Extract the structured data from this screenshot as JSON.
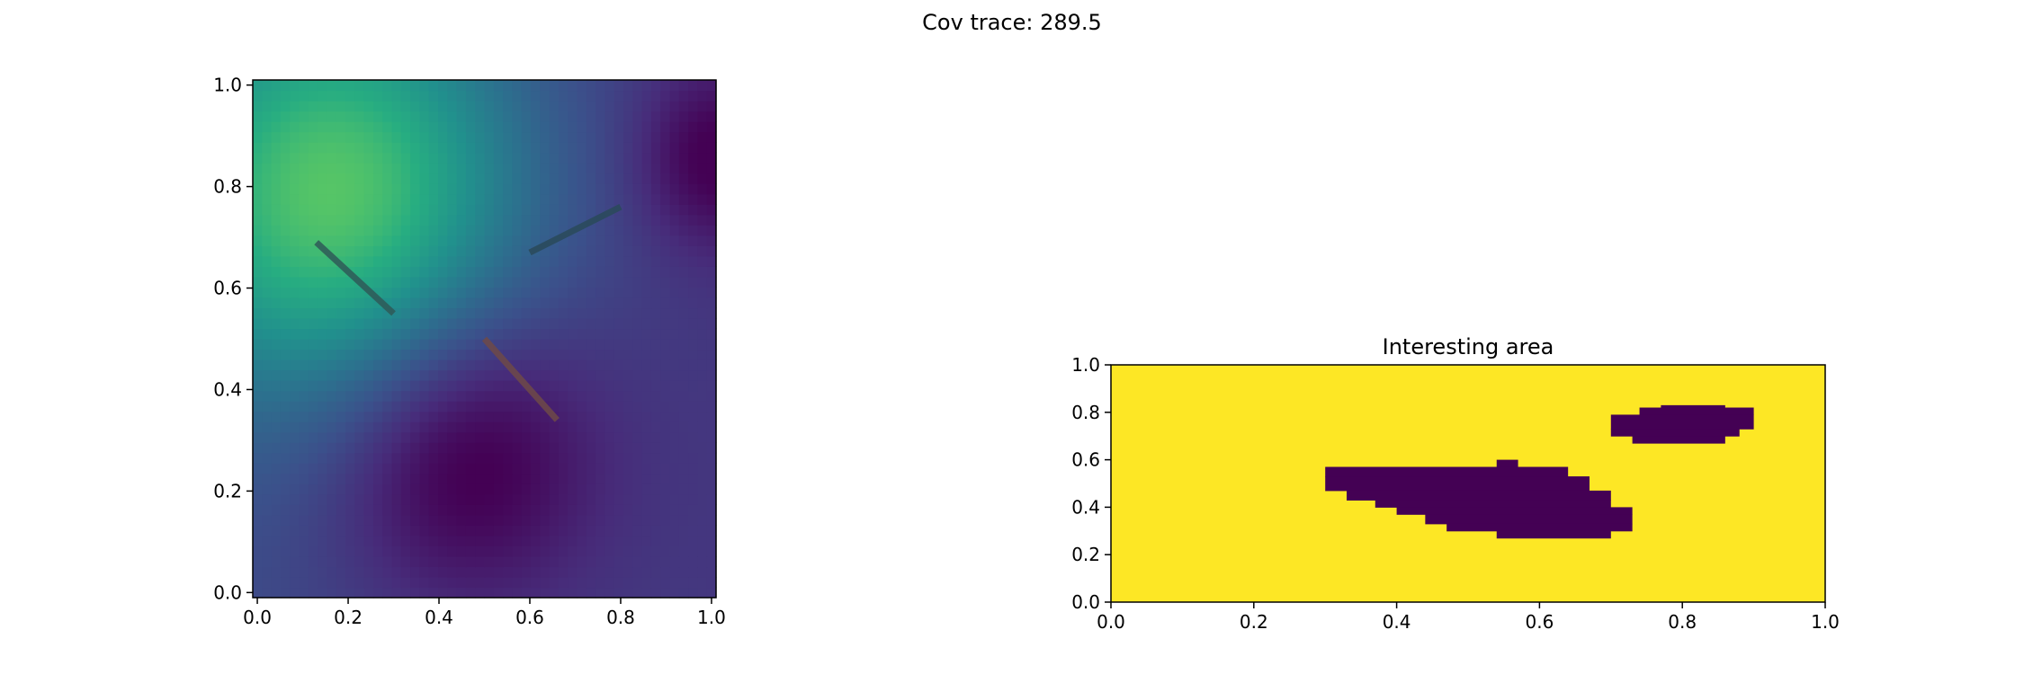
{
  "figure": {
    "suptitle": "Cov trace: 289.5"
  },
  "chart_data": [
    {
      "type": "heatmap",
      "title": "",
      "xlabel": "",
      "ylabel": "",
      "xlim": [
        -0.01,
        1.01
      ],
      "ylim": [
        -0.01,
        1.01
      ],
      "xticks": [
        "0.0",
        "0.2",
        "0.4",
        "0.6",
        "0.8",
        "1.0"
      ],
      "yticks": [
        "0.0",
        "0.2",
        "0.4",
        "0.6",
        "0.8",
        "1.0"
      ],
      "colormap": "viridis",
      "grid_resolution": 50,
      "field_description_peaks": [
        {
          "x": 0.18,
          "y": 0.78,
          "value": 0.52,
          "spread": 0.28
        },
        {
          "x": 0.45,
          "y": 0.28,
          "value": -0.02,
          "spread": 0.2
        }
      ],
      "segments": [
        {
          "x": [
            0.13,
            0.3
          ],
          "y": [
            0.69,
            0.55
          ],
          "color": "#2f5a58"
        },
        {
          "x": [
            0.6,
            0.8
          ],
          "y": [
            0.67,
            0.76
          ],
          "color": "#2a4a5a"
        },
        {
          "x": [
            0.5,
            0.66
          ],
          "y": [
            0.5,
            0.34
          ],
          "color": "#6e4a48"
        }
      ]
    },
    {
      "type": "heatmap",
      "title": "Interesting area",
      "xlabel": "",
      "ylabel": "",
      "xlim": [
        0.0,
        1.0
      ],
      "ylim": [
        0.0,
        1.0
      ],
      "xticks": [
        "0.0",
        "0.2",
        "0.4",
        "0.6",
        "0.8",
        "1.0"
      ],
      "yticks": [
        "0.0",
        "0.2",
        "0.4",
        "0.6",
        "0.8",
        "1.0"
      ],
      "colors": {
        "outside": "#fde725",
        "inside": "#440154"
      },
      "grid": {
        "cols": 30,
        "rows": 10
      },
      "dark_cells_by_row": [
        {
          "row": 2,
          "cols": [
            [
              10,
              13
            ],
            [
              16,
              18
            ]
          ]
        },
        {
          "row": 3,
          "cols": [
            [
              14,
              21
            ]
          ]
        },
        {
          "row": 4,
          "cols": [
            [
              8,
              22
            ]
          ]
        },
        {
          "row": 5,
          "cols": [
            [
              9,
              19
            ]
          ]
        },
        {
          "row": 6,
          "cols": [
            [
              10,
              20
            ]
          ]
        },
        {
          "row": 7,
          "cols": [
            [
              11,
              23
            ]
          ]
        },
        {
          "row": 8,
          "cols": [
            [
              21,
              27
            ]
          ]
        }
      ],
      "dark_regions": [
        {
          "x": [
            0.3,
            0.73
          ],
          "y": [
            0.27,
            0.6
          ]
        },
        {
          "x": [
            0.7,
            0.9
          ],
          "y": [
            0.67,
            0.83
          ]
        }
      ]
    }
  ]
}
